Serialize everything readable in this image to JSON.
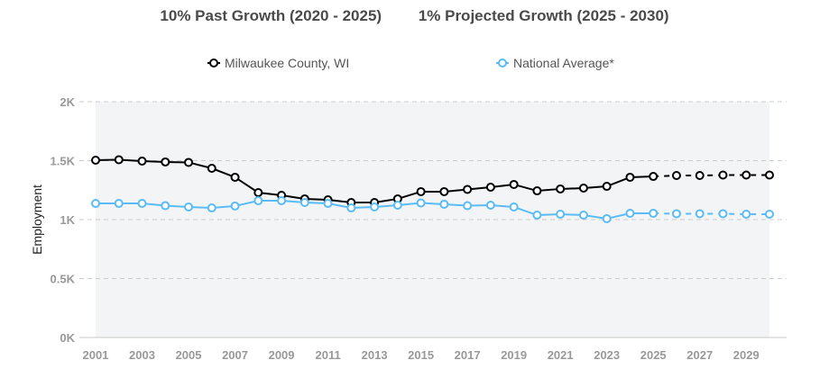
{
  "headline": {
    "past_growth": "10% Past Growth (2020 - 2025)",
    "projected_growth": "1% Projected Growth (2025 - 2030)"
  },
  "colors": {
    "county": "#000000",
    "national": "#5bbcf5",
    "plot_bg": "#f3f4f6",
    "grid": "#cccccc",
    "tick_text": "#999999"
  },
  "chart_data": {
    "type": "line",
    "title": "",
    "xlabel": "",
    "ylabel": "Employment",
    "ylim": [
      0,
      2000
    ],
    "yticks": [
      0,
      500,
      1000,
      1500,
      2000
    ],
    "ytick_labels": [
      "0K",
      "0.5K",
      "1K",
      "1.5K",
      "2K"
    ],
    "x": [
      2001,
      2002,
      2003,
      2004,
      2005,
      2006,
      2007,
      2008,
      2009,
      2010,
      2011,
      2012,
      2013,
      2014,
      2015,
      2016,
      2017,
      2018,
      2019,
      2020,
      2021,
      2022,
      2023,
      2024,
      2025,
      2026,
      2027,
      2028,
      2029,
      2030
    ],
    "xtick_labels": [
      "2001",
      "2003",
      "2005",
      "2007",
      "2009",
      "2011",
      "2013",
      "2015",
      "2017",
      "2019",
      "2021",
      "2023",
      "2025",
      "2027",
      "2029"
    ],
    "projection_start": 2025,
    "grid": true,
    "legend_position": "top",
    "series": [
      {
        "name": "Milwaukee County, WI",
        "color": "#000000",
        "values": [
          1504,
          1508,
          1496,
          1489,
          1485,
          1435,
          1359,
          1229,
          1206,
          1176,
          1168,
          1145,
          1145,
          1176,
          1237,
          1237,
          1256,
          1275,
          1298,
          1244,
          1260,
          1267,
          1282,
          1359,
          1366,
          1374,
          1374,
          1378,
          1378,
          1378
        ]
      },
      {
        "name": "National Average*",
        "color": "#5bbcf5",
        "values": [
          1137,
          1137,
          1137,
          1118,
          1107,
          1099,
          1115,
          1160,
          1160,
          1145,
          1137,
          1099,
          1107,
          1122,
          1141,
          1130,
          1118,
          1122,
          1107,
          1038,
          1046,
          1038,
          1008,
          1053,
          1053,
          1050,
          1050,
          1050,
          1046,
          1046
        ]
      }
    ]
  }
}
